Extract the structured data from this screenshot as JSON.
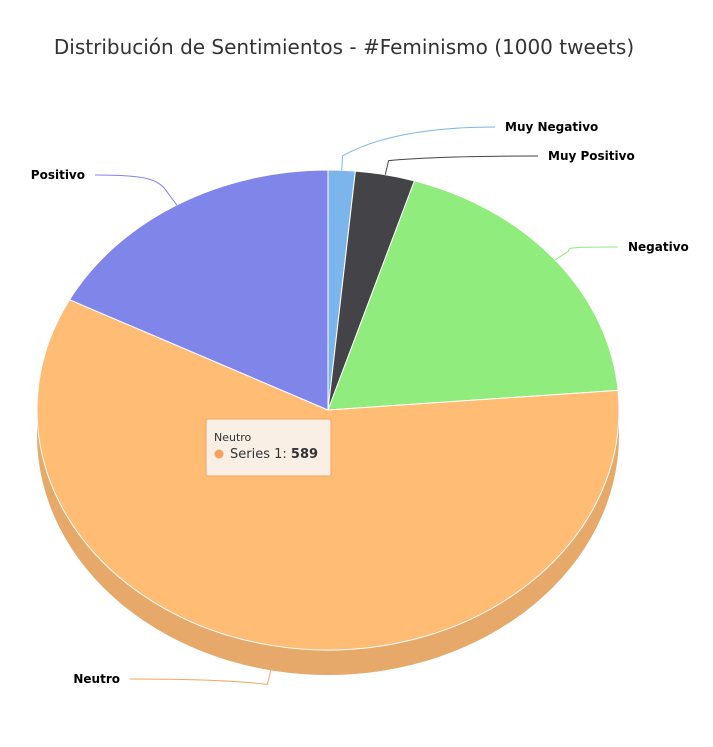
{
  "chart_data": {
    "type": "pie",
    "title": "Distribución de Sentimientos - #Feminismo (1000 tweets)",
    "series_name": "Series 1",
    "slices": [
      {
        "label": "Muy Negativo",
        "value": 15,
        "color": "#7cb5ec"
      },
      {
        "label": "Muy Positivo",
        "value": 33,
        "color": "#434348"
      },
      {
        "label": "Negativo",
        "value": 189,
        "color": "#90ed7d"
      },
      {
        "label": "Neutro",
        "value": 589,
        "color": "#ffbc75"
      },
      {
        "label": "Positivo",
        "value": 174,
        "color": "#8085e9"
      }
    ],
    "three_d": true,
    "start_angle": 0,
    "tooltip": {
      "label": "Neutro",
      "series": "Series 1",
      "value": "589",
      "dot_color": "#f7a35c"
    }
  }
}
